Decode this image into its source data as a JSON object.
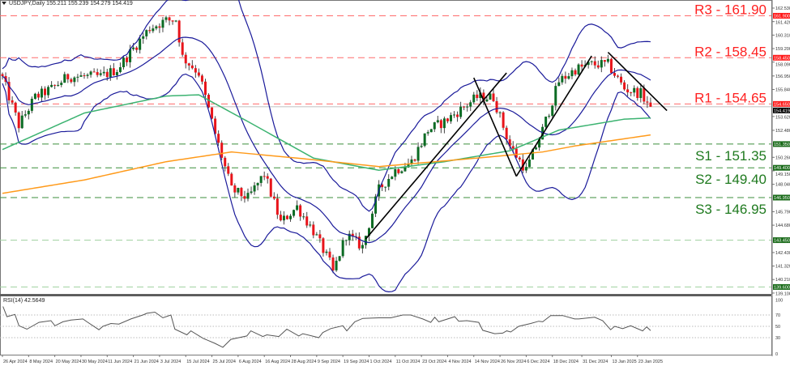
{
  "header": {
    "symbol": "USDJPY,Daily",
    "open": "155.211",
    "high": "155.239",
    "low": "154.279",
    "close": "154.419"
  },
  "colors": {
    "bull": "#0b6b23",
    "bear": "#e8141a",
    "bollinger": "#1a1a9a",
    "ma_fast": "#3cb371",
    "ma_slow": "#ff9a1a",
    "resistance": "#ff2020",
    "support": "#1f7a1f",
    "trendline": "#000000",
    "rsi": "#555555"
  },
  "chart_data": [
    {
      "type": "candlestick",
      "title": "",
      "ylim": [
        139.1,
        162.53
      ],
      "y_ticks": [
        "162.530",
        "161.420",
        "160.310",
        "159.200",
        "158.090",
        "156.950",
        "155.840",
        "153.620",
        "152.480",
        "150.260",
        "149.150",
        "148.040",
        "145.790",
        "144.680",
        "142.430",
        "141.320",
        "140.210",
        "139.100"
      ],
      "x_tick_labels": [
        "26 Apr 2024",
        "8 May 2024",
        "20 May 2024",
        "30 May 2024",
        "11 Jun 2024",
        "21 Jun 2024",
        "3 Jul 2024",
        "15 Jul 2024",
        "25 Jul 2024",
        "6 Aug 2024",
        "16 Aug 2024",
        "28 Aug 2024",
        "9 Sep 2024",
        "19 Sep 2024",
        "1 Oct 2024",
        "11 Oct 2024",
        "23 Oct 2024",
        "4 Nov 2024",
        "14 Nov 2024",
        "26 Nov 2024",
        "6 Dec 2024",
        "18 Dec 2024",
        "31 Dec 2024",
        "13 Jan 2025",
        "23 Jan 2025"
      ],
      "close_path": [
        [
          "26 Apr 2024",
          156.8
        ],
        [
          "3 May 2024",
          152.9
        ],
        [
          "10 May 2024",
          155.2
        ],
        [
          "17 May 2024",
          155.9
        ],
        [
          "24 May 2024",
          156.9
        ],
        [
          "31 May 2024",
          156.9
        ],
        [
          "7 Jun 2024",
          156.9
        ],
        [
          "14 Jun 2024",
          157.5
        ],
        [
          "21 Jun 2024",
          159.2
        ],
        [
          "28 Jun 2024",
          160.9
        ],
        [
          "5 Jul 2024",
          161.5
        ],
        [
          "10 Jul 2024",
          161.6
        ],
        [
          "12 Jul 2024",
          158.5
        ],
        [
          "19 Jul 2024",
          157.2
        ],
        [
          "26 Jul 2024",
          152.2
        ],
        [
          "2 Aug 2024",
          147.6
        ],
        [
          "9 Aug 2024",
          146.9
        ],
        [
          "16 Aug 2024",
          148.9
        ],
        [
          "23 Aug 2024",
          144.9
        ],
        [
          "30 Aug 2024",
          146.2
        ],
        [
          "6 Sep 2024",
          144.2
        ],
        [
          "13 Sep 2024",
          141.6
        ],
        [
          "16 Sep 2024",
          140.8
        ],
        [
          "20 Sep 2024",
          143.9
        ],
        [
          "27 Sep 2024",
          142.9
        ],
        [
          "4 Oct 2024",
          147.6
        ],
        [
          "11 Oct 2024",
          149.2
        ],
        [
          "18 Oct 2024",
          149.9
        ],
        [
          "25 Oct 2024",
          152.5
        ],
        [
          "1 Nov 2024",
          153.2
        ],
        [
          "8 Nov 2024",
          154.2
        ],
        [
          "15 Nov 2024",
          155.2
        ],
        [
          "22 Nov 2024",
          155.2
        ],
        [
          "29 Nov 2024",
          151.2
        ],
        [
          "6 Dec 2024",
          149.2
        ],
        [
          "13 Dec 2024",
          152.5
        ],
        [
          "20 Dec 2024",
          156.5
        ],
        [
          "27 Dec 2024",
          157.5
        ],
        [
          "3 Jan 2025",
          157.9
        ],
        [
          "10 Jan 2025",
          157.9
        ],
        [
          "17 Jan 2025",
          155.9
        ],
        [
          "24 Jan 2025",
          155.5
        ],
        [
          "29 Jan 2025",
          154.419
        ]
      ],
      "moving_average_green": [
        [
          "26 Apr 2024",
          150.9
        ],
        [
          "31 May 2024",
          153.9
        ],
        [
          "5 Jul 2024",
          155.3
        ],
        [
          "19 Jul 2024",
          155.4
        ],
        [
          "9 Aug 2024",
          153.2
        ],
        [
          "6 Sep 2024",
          150.2
        ],
        [
          "4 Oct 2024",
          149.2
        ],
        [
          "1 Nov 2024",
          149.9
        ],
        [
          "29 Nov 2024",
          150.8
        ],
        [
          "20 Dec 2024",
          152.5
        ],
        [
          "17 Jan 2025",
          153.4
        ],
        [
          "29 Jan 2025",
          153.5
        ]
      ],
      "moving_average_orange": [
        [
          "26 Apr 2024",
          147.3
        ],
        [
          "31 May 2024",
          148.4
        ],
        [
          "5 Jul 2024",
          149.9
        ],
        [
          "2 Aug 2024",
          150.7
        ],
        [
          "30 Aug 2024",
          150.2
        ],
        [
          "4 Oct 2024",
          149.5
        ],
        [
          "15 Nov 2024",
          150.2
        ],
        [
          "13 Dec 2024",
          150.7
        ],
        [
          "27 Dec 2024",
          151.2
        ],
        [
          "29 Jan 2025",
          152.1
        ]
      ],
      "trendlines": [
        [
          [
            "30 Sep 2024",
            143.55
          ],
          [
            "28 Nov 2024",
            157.2
          ]
        ],
        [
          [
            "14 Nov 2024",
            156.8
          ],
          [
            "3 Dec 2024",
            148.7
          ]
        ],
        [
          [
            "3 Dec 2024",
            148.7
          ],
          [
            "3 Jan 2025",
            158.6
          ]
        ],
        [
          [
            "10 Jan 2025",
            158.9
          ],
          [
            "5 Feb 2025",
            154.1
          ]
        ]
      ],
      "levels": [
        {
          "label": "R3 - 161.90",
          "value": 161.9,
          "tag": "161.900",
          "kind": "resistance"
        },
        {
          "label": "R2 - 158.45",
          "value": 158.45,
          "tag": "158.450",
          "kind": "resistance"
        },
        {
          "label": "R1 - 154.65",
          "value": 154.65,
          "tag": "154.650",
          "kind": "resistance"
        },
        {
          "label": "S1 - 151.35",
          "value": 151.35,
          "tag": "151.350",
          "kind": "support"
        },
        {
          "label": "S2 - 149.40",
          "value": 149.4,
          "tag": "149.400",
          "kind": "support"
        },
        {
          "label": "S3 - 146.95",
          "value": 146.95,
          "tag": "146.950",
          "kind": "support"
        },
        {
          "label": "",
          "value": 143.45,
          "tag": "143.450",
          "kind": "minor"
        },
        {
          "label": "",
          "value": 139.6,
          "tag": "139.600",
          "kind": "minor"
        }
      ],
      "current_price": {
        "value": 154.419,
        "tag": "154.419"
      }
    },
    {
      "type": "line",
      "title": "RSI(14) 42.5649",
      "ylim": [
        0,
        100
      ],
      "y_ticks": [
        "100",
        "70",
        "50",
        "30",
        "0"
      ],
      "grid_levels": [
        70,
        50,
        30
      ],
      "values": [
        [
          "26 Apr 2024",
          85
        ],
        [
          "29 Apr 2024",
          67
        ],
        [
          "1 May 2024",
          71
        ],
        [
          "2 May 2024",
          51
        ],
        [
          "6 May 2024",
          45
        ],
        [
          "9 May 2024",
          57
        ],
        [
          "14 May 2024",
          60
        ],
        [
          "15 May 2024",
          51
        ],
        [
          "17 May 2024",
          58
        ],
        [
          "21 May 2024",
          61
        ],
        [
          "24 May 2024",
          63
        ],
        [
          "27 May 2024",
          58
        ],
        [
          "30 May 2024",
          44
        ],
        [
          "31 May 2024",
          50
        ],
        [
          "4 Jun 2024",
          55
        ],
        [
          "6 Jun 2024",
          54
        ],
        [
          "11 Jun 2024",
          63
        ],
        [
          "14 Jun 2024",
          70
        ],
        [
          "17 Jun 2024",
          73
        ],
        [
          "19 Jun 2024",
          75
        ],
        [
          "21 Jun 2024",
          65
        ],
        [
          "25 Jun 2024",
          70
        ],
        [
          "26 Jun 2024",
          45
        ],
        [
          "1 Jul 2024",
          35
        ],
        [
          "2 Jul 2024",
          42
        ],
        [
          "5 Jul 2024",
          29
        ],
        [
          "10 Jul 2024",
          20
        ],
        [
          "12 Jul 2024",
          13
        ],
        [
          "16 Jul 2024",
          27
        ],
        [
          "22 Jul 2024",
          33
        ],
        [
          "23 Jul 2024",
          42
        ],
        [
          "26 Jul 2024",
          32
        ],
        [
          "29 Jul 2024",
          35
        ],
        [
          "1 Aug 2024",
          32
        ],
        [
          "5 Aug 2024",
          45
        ],
        [
          "8 Aug 2024",
          33
        ],
        [
          "9 Aug 2024",
          37
        ],
        [
          "15 Aug 2024",
          30
        ],
        [
          "16 Aug 2024",
          39
        ],
        [
          "20 Aug 2024",
          46
        ],
        [
          "23 Aug 2024",
          51
        ],
        [
          "26 Aug 2024",
          42
        ],
        [
          "28 Aug 2024",
          58
        ],
        [
          "30 Aug 2024",
          64
        ],
        [
          "5 Sep 2024",
          65
        ],
        [
          "10 Sep 2024",
          65
        ],
        [
          "13 Sep 2024",
          70
        ],
        [
          "17 Sep 2024",
          70
        ],
        [
          "20 Sep 2024",
          63
        ],
        [
          "24 Sep 2024",
          57
        ],
        [
          "25 Sep 2024",
          66
        ],
        [
          "26 Sep 2024",
          58
        ],
        [
          "2 Oct 2024",
          67
        ],
        [
          "3 Oct 2024",
          59
        ],
        [
          "7 Oct 2024",
          60
        ],
        [
          "10 Oct 2024",
          57
        ],
        [
          "11 Oct 2024",
          43
        ],
        [
          "16 Oct 2024",
          37
        ],
        [
          "18 Oct 2024",
          38
        ],
        [
          "21 Oct 2024",
          42
        ],
        [
          "22 Oct 2024",
          40
        ],
        [
          "24 Oct 2024",
          50
        ],
        [
          "29 Oct 2024",
          55
        ],
        [
          "31 Oct 2024",
          59
        ],
        [
          "1 Nov 2024",
          58
        ],
        [
          "5 Nov 2024",
          69
        ],
        [
          "8 Nov 2024",
          69
        ],
        [
          "13 Nov 2024",
          63
        ],
        [
          "14 Nov 2024",
          63
        ],
        [
          "20 Nov 2024",
          66
        ],
        [
          "22 Nov 2024",
          60
        ],
        [
          "26 Nov 2024",
          44
        ],
        [
          "27 Nov 2024",
          50
        ],
        [
          "29 Nov 2024",
          46
        ],
        [
          "3 Dec 2024",
          51
        ],
        [
          "6 Dec 2024",
          42
        ],
        [
          "9 Dec 2024",
          49
        ],
        [
          "10 Dec 2024",
          42.5649
        ]
      ]
    }
  ]
}
